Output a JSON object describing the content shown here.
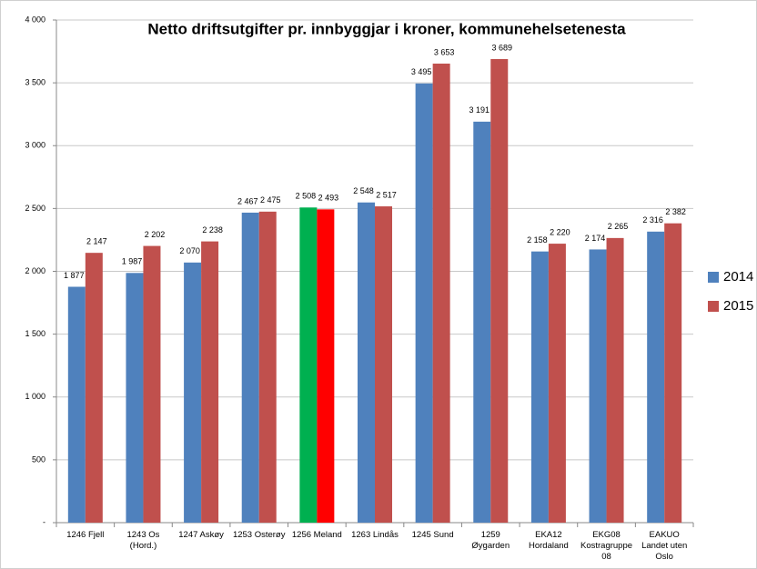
{
  "chart_data": {
    "type": "bar",
    "title": "Netto driftsutgifter pr. innbyggjar i kroner, kommunehelsetenesta",
    "categories": [
      "1246 Fjell",
      "1243 Os (Hord.)",
      "1247 Askøy",
      "1253 Osterøy",
      "1256 Meland",
      "1263 Lindås",
      "1245 Sund",
      "1259 Øygarden",
      "EKA12 Hordaland",
      "EKG08 Kostragruppe 08",
      "EAKUO Landet uten Oslo"
    ],
    "series": [
      {
        "name": "2014",
        "color": "#4f81bd",
        "colors": [
          "#4f81bd",
          "#4f81bd",
          "#4f81bd",
          "#4f81bd",
          "#00b050",
          "#4f81bd",
          "#4f81bd",
          "#4f81bd",
          "#4f81bd",
          "#4f81bd",
          "#4f81bd"
        ],
        "values": [
          1877,
          1987,
          2070,
          2467,
          2508,
          2548,
          3495,
          3191,
          2158,
          2174,
          2316
        ],
        "value_labels": [
          "1 877",
          "1 987",
          "2 070",
          "2 467",
          "2 508",
          "2 548",
          "3 495",
          "3 191",
          "2 158",
          "2 174",
          "2 316"
        ]
      },
      {
        "name": "2015",
        "color": "#c0504d",
        "colors": [
          "#c0504d",
          "#c0504d",
          "#c0504d",
          "#c0504d",
          "#ff0000",
          "#c0504d",
          "#c0504d",
          "#c0504d",
          "#c0504d",
          "#c0504d",
          "#c0504d"
        ],
        "values": [
          2147,
          2202,
          2238,
          2475,
          2493,
          2517,
          3653,
          3689,
          2220,
          2265,
          2382
        ],
        "value_labels": [
          "2 147",
          "2 202",
          "2 238",
          "2 475",
          "2 493",
          "2 517",
          "3 653",
          "3 689",
          "2 220",
          "2 265",
          "2 382"
        ]
      }
    ],
    "ylim": [
      0,
      4000
    ],
    "yticks": [
      {
        "value": 0,
        "label": "-"
      },
      500,
      {
        "value": 1000,
        "label": "1 000"
      },
      {
        "value": 1500,
        "label": "1 500"
      },
      {
        "value": 2000,
        "label": "2 000"
      },
      {
        "value": 2500,
        "label": "2 500"
      },
      {
        "value": 3000,
        "label": "3 000"
      },
      {
        "value": 3500,
        "label": "3 500"
      },
      {
        "value": 4000,
        "label": "4 000"
      }
    ],
    "grid": true,
    "legend": "right"
  }
}
